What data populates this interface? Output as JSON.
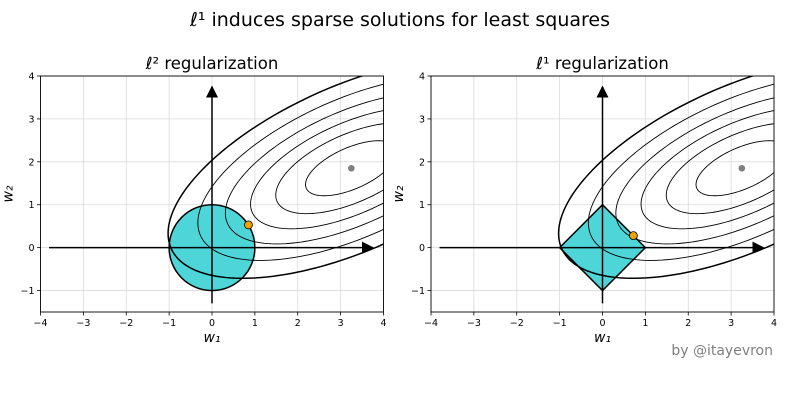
{
  "title": "ℓ¹ induces sparse solutions for least squares",
  "credit": "by @itayevron",
  "colors": {
    "region_fill": "#4dd5d8",
    "solution_point": "#f0a300",
    "unconstrained_point": "#808080",
    "contour": "#000000",
    "grid": "#d9d9d9"
  },
  "chart_data": [
    {
      "type": "contour",
      "title": "ℓ² regularization",
      "xlabel": "w₁",
      "ylabel": "w₂",
      "xlim": [
        -4,
        4
      ],
      "ylim": [
        -1.5,
        4
      ],
      "xticks": [
        "−4",
        "−3",
        "−2",
        "−1",
        "0",
        "1",
        "2",
        "3",
        "4"
      ],
      "yticks": [
        "−1",
        "0",
        "1",
        "2",
        "3",
        "4"
      ],
      "grid": true,
      "unconstrained_minimum": [
        3.25,
        1.85
      ],
      "constraint_region": "disk",
      "constraint_radius": 1,
      "constrained_solution": [
        0.85,
        0.53
      ]
    },
    {
      "type": "contour",
      "title": "ℓ¹ regularization",
      "xlabel": "w₁",
      "ylabel": "w₂",
      "xlim": [
        -4,
        4
      ],
      "ylim": [
        -1.5,
        4
      ],
      "xticks": [
        "−4",
        "−3",
        "−2",
        "−1",
        "0",
        "1",
        "2",
        "3",
        "4"
      ],
      "yticks": [
        "−1",
        "0",
        "1",
        "2",
        "3",
        "4"
      ],
      "grid": true,
      "unconstrained_minimum": [
        3.25,
        1.85
      ],
      "constraint_region": "diamond",
      "constraint_radius": 1,
      "constrained_solution": [
        0.72,
        0.28
      ]
    }
  ]
}
